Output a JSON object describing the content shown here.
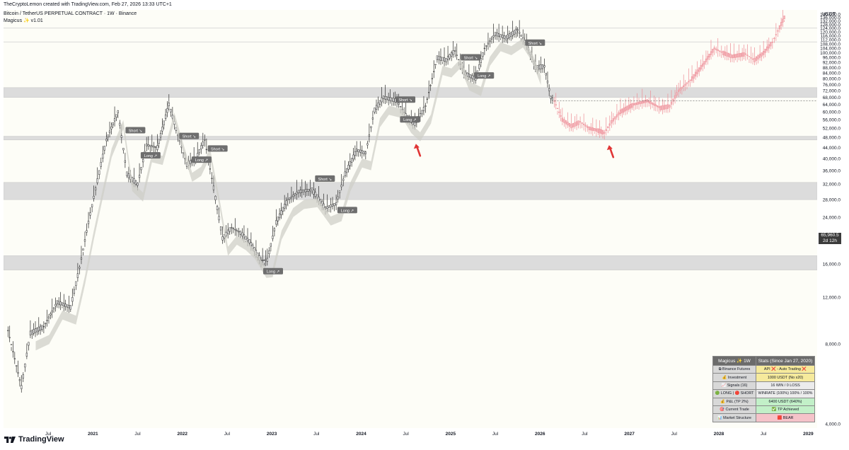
{
  "header": {
    "credit": "TheCryptoLemon created with TradingView.com, Feb 27, 2026 13:33 UTC+1",
    "symbol": "Bitcoin / TetherUS PERPETUAL CONTRACT · 1W · Binance",
    "indicator": "Magicus ✨ v1.01"
  },
  "price_axis": {
    "currency": "USDT",
    "last_price": "65,960.5",
    "countdown": "2d 12h"
  },
  "logo": "TradingView",
  "stats_table": {
    "header": [
      "Magicus ✨ 1W",
      "Stats (Since Jan 27, 2020)"
    ],
    "rows": [
      {
        "label": "⧉ Binance Futures",
        "value": "API ❌ - Auto Trading ❌",
        "style": "yellow"
      },
      {
        "label": "💰 Investment",
        "value": "1000 USDT (No x20)",
        "style": "yellow"
      },
      {
        "label": "📈 Signals (16)",
        "value": "16 WIN / 0 LOSS",
        "style": ""
      },
      {
        "label": "🟢 LONG | 🔴 SHORT",
        "value": "WINRATE (100%) 100% / 100%",
        "style": ""
      },
      {
        "label": "💰 P&L (TP 2%)",
        "value": "6400 USDT (640%)",
        "style": "green"
      },
      {
        "label": "🎯 Current Trade",
        "value": "✅ TP Achieved",
        "style": "green"
      },
      {
        "label": "📊 Market Structure",
        "value": "🟥 BEAR",
        "style": "pink"
      }
    ]
  },
  "chart_data": {
    "type": "line",
    "scale": "log",
    "ylim": [
      4000,
      140000
    ],
    "y_ticks": [
      4000,
      8000,
      12000,
      16000,
      20000,
      24000,
      28000,
      32000,
      36000,
      40000,
      44000,
      48000,
      52000,
      56000,
      60000,
      64000,
      68000,
      72000,
      76000,
      80000,
      84000,
      88000,
      92000,
      96000,
      100000,
      104000,
      108000,
      112000,
      116000,
      120000,
      124000,
      128000,
      132000,
      136000,
      140000
    ],
    "y_tick_labels": [
      "4,000.0",
      "8,000.0",
      "12,000.0",
      "16,000.0",
      "20,000.0",
      "24,000.0",
      "28,000.0",
      "32,000.0",
      "36,000.0",
      "40,000.0",
      "44,000.0",
      "48,000.0",
      "52,000.0",
      "56,000.0",
      "60,000.0",
      "64,000.0",
      "68,000.0",
      "72,000.0",
      "76,000.0",
      "80,000.0",
      "84,000.0",
      "88,000.0",
      "92,000.0",
      "96,000.0",
      "100,000.0",
      "104,000.0",
      "108,000.0",
      "112,000.0",
      "116,000.0",
      "120,000.0",
      "124,000.0",
      "128,000.0",
      "132,000.0",
      "136,000.0",
      "140,000.0"
    ],
    "x_ticks": [
      {
        "t": 2020.5,
        "label": "Jul",
        "major": false
      },
      {
        "t": 2021.0,
        "label": "2021",
        "major": true
      },
      {
        "t": 2021.5,
        "label": "Jul",
        "major": false
      },
      {
        "t": 2022.0,
        "label": "2022",
        "major": true
      },
      {
        "t": 2022.5,
        "label": "Jul",
        "major": false
      },
      {
        "t": 2023.0,
        "label": "2023",
        "major": true
      },
      {
        "t": 2023.5,
        "label": "Jul",
        "major": false
      },
      {
        "t": 2024.0,
        "label": "2024",
        "major": true
      },
      {
        "t": 2024.5,
        "label": "Jul",
        "major": false
      },
      {
        "t": 2025.0,
        "label": "2025",
        "major": true
      },
      {
        "t": 2025.5,
        "label": "Jul",
        "major": false
      },
      {
        "t": 2026.0,
        "label": "2026",
        "major": true
      },
      {
        "t": 2026.5,
        "label": "Jul",
        "major": false
      },
      {
        "t": 2027.0,
        "label": "2027",
        "major": true
      },
      {
        "t": 2027.5,
        "label": "Jul",
        "major": false
      },
      {
        "t": 2028.0,
        "label": "2028",
        "major": true
      },
      {
        "t": 2028.5,
        "label": "Jul",
        "major": false
      },
      {
        "t": 2029.0,
        "label": "2029",
        "major": true
      }
    ],
    "xlim": [
      2020.0,
      2029.1
    ],
    "zones": [
      [
        68000,
        74000
      ],
      [
        47000,
        48500
      ],
      [
        28000,
        32500
      ],
      [
        15200,
        17200
      ]
    ],
    "hlines": [
      124000,
      110000
    ],
    "series": [
      {
        "name": "",
        "color": "#2b2b2b",
        "points": [
          [
            2020.05,
            9000
          ],
          [
            2020.2,
            5500
          ],
          [
            2020.3,
            8800
          ],
          [
            2020.45,
            9300
          ],
          [
            2020.6,
            11500
          ],
          [
            2020.75,
            11000
          ],
          [
            2020.85,
            15500
          ],
          [
            2020.95,
            23000
          ],
          [
            2021.05,
            33000
          ],
          [
            2021.15,
            47000
          ],
          [
            2021.28,
            60000
          ],
          [
            2021.38,
            35000
          ],
          [
            2021.5,
            32000
          ],
          [
            2021.6,
            45000
          ],
          [
            2021.72,
            44000
          ],
          [
            2021.85,
            64000
          ],
          [
            2021.95,
            49000
          ],
          [
            2022.05,
            38000
          ],
          [
            2022.15,
            40000
          ],
          [
            2022.25,
            47000
          ],
          [
            2022.35,
            31000
          ],
          [
            2022.45,
            20000
          ],
          [
            2022.55,
            22000
          ],
          [
            2022.65,
            21000
          ],
          [
            2022.75,
            19500
          ],
          [
            2022.88,
            16500
          ],
          [
            2022.95,
            16600
          ],
          [
            2023.05,
            23000
          ],
          [
            2023.18,
            28000
          ],
          [
            2023.3,
            30000
          ],
          [
            2023.45,
            30500
          ],
          [
            2023.6,
            26000
          ],
          [
            2023.72,
            27000
          ],
          [
            2023.82,
            35000
          ],
          [
            2023.95,
            43000
          ],
          [
            2024.05,
            42000
          ],
          [
            2024.15,
            61000
          ],
          [
            2024.25,
            68000
          ],
          [
            2024.4,
            66000
          ],
          [
            2024.5,
            58000
          ],
          [
            2024.6,
            54000
          ],
          [
            2024.72,
            63000
          ],
          [
            2024.85,
            96000
          ],
          [
            2024.95,
            94000
          ],
          [
            2025.05,
            102000
          ],
          [
            2025.15,
            84000
          ],
          [
            2025.28,
            80000
          ],
          [
            2025.38,
            104000
          ],
          [
            2025.5,
            118000
          ],
          [
            2025.62,
            114000
          ],
          [
            2025.75,
            122000
          ],
          [
            2025.85,
            108000
          ],
          [
            2025.95,
            88000
          ],
          [
            2026.05,
            89000
          ],
          [
            2026.12,
            68000
          ],
          [
            2026.16,
            65960
          ]
        ]
      },
      {
        "name": "",
        "color": "#ee8d96",
        "points": [
          [
            2026.16,
            65960
          ],
          [
            2026.25,
            56000
          ],
          [
            2026.35,
            53000
          ],
          [
            2026.45,
            55000
          ],
          [
            2026.55,
            52000
          ],
          [
            2026.65,
            51000
          ],
          [
            2026.72,
            50000
          ],
          [
            2026.8,
            55000
          ],
          [
            2026.9,
            60000
          ],
          [
            2027.05,
            64000
          ],
          [
            2027.2,
            66000
          ],
          [
            2027.35,
            62000
          ],
          [
            2027.45,
            63000
          ],
          [
            2027.55,
            72000
          ],
          [
            2027.7,
            80000
          ],
          [
            2027.82,
            90000
          ],
          [
            2027.95,
            104000
          ],
          [
            2028.05,
            100000
          ],
          [
            2028.15,
            97000
          ],
          [
            2028.3,
            99000
          ],
          [
            2028.4,
            94000
          ],
          [
            2028.5,
            100000
          ],
          [
            2028.6,
            110000
          ],
          [
            2028.68,
            125000
          ],
          [
            2028.75,
            140000
          ]
        ]
      }
    ],
    "signals": [
      {
        "t": 2021.38,
        "price": 51000,
        "label": "Short ↘"
      },
      {
        "t": 2021.55,
        "price": 41000,
        "label": "Long ↗"
      },
      {
        "t": 2021.98,
        "price": 48500,
        "label": "Short ↘"
      },
      {
        "t": 2022.12,
        "price": 39500,
        "label": "Long ↗"
      },
      {
        "t": 2022.3,
        "price": 43500,
        "label": "Short ↘"
      },
      {
        "t": 2023.5,
        "price": 33500,
        "label": "Short ↘"
      },
      {
        "t": 2023.75,
        "price": 25500,
        "label": "Long ↗"
      },
      {
        "t": 2022.92,
        "price": 15000,
        "label": "Long ↗"
      },
      {
        "t": 2024.4,
        "price": 66500,
        "label": "Short ↘"
      },
      {
        "t": 2024.45,
        "price": 56000,
        "label": "Long ↗"
      },
      {
        "t": 2025.13,
        "price": 96000,
        "label": "Short ↘"
      },
      {
        "t": 2025.28,
        "price": 82000,
        "label": "Long ↗"
      },
      {
        "t": 2025.85,
        "price": 109000,
        "label": "Short ↘"
      }
    ],
    "arrows": [
      [
        2024.62,
        43000
      ],
      [
        2026.78,
        42500
      ]
    ]
  }
}
